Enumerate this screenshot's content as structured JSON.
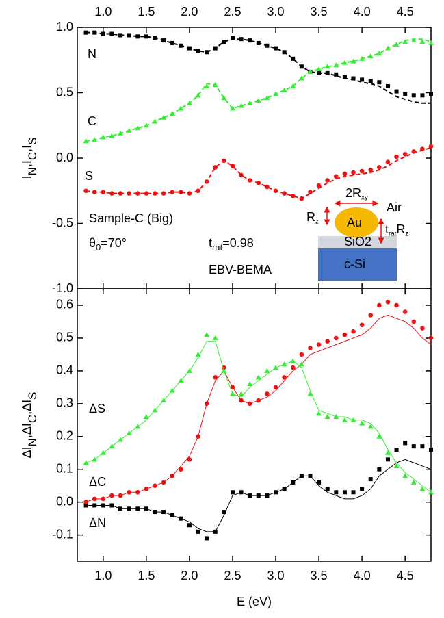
{
  "chart_data": [
    {
      "type": "line",
      "xaxis": "top",
      "ylabel": [
        {
          "text": "I"
        },
        {
          "text": "N",
          "sub": true
        },
        {
          "text": ",I"
        },
        {
          "text": "C",
          "sub": true
        },
        {
          "text": ",I"
        },
        {
          "text": "S",
          "sub": true
        }
      ],
      "x": [
        0.8,
        0.9,
        1.0,
        1.1,
        1.2,
        1.3,
        1.4,
        1.5,
        1.6,
        1.7,
        1.8,
        1.9,
        2.0,
        2.1,
        2.2,
        2.3,
        2.4,
        2.5,
        2.6,
        2.7,
        2.8,
        2.9,
        3.0,
        3.1,
        3.2,
        3.3,
        3.4,
        3.5,
        3.6,
        3.7,
        3.8,
        3.9,
        4.0,
        4.1,
        4.2,
        4.3,
        4.4,
        4.5,
        4.6,
        4.7,
        4.8
      ],
      "xlim": [
        0.7,
        4.8
      ],
      "xticks": [
        {
          "value": 1,
          "label": "1.0"
        },
        {
          "value": 1.5,
          "label": "1.5"
        },
        {
          "value": 2,
          "label": "2.0"
        },
        {
          "value": 2.5,
          "label": "2.5"
        },
        {
          "value": 3,
          "label": "3.0"
        },
        {
          "value": 3.5,
          "label": "3.5"
        },
        {
          "value": 4,
          "label": "4.0"
        },
        {
          "value": 4.5,
          "label": "4.5"
        }
      ],
      "ylim": [
        -1,
        1
      ],
      "yticks": [
        {
          "value": 1,
          "label": "1.0"
        },
        {
          "value": 0.5,
          "label": "0.5"
        },
        {
          "value": 0,
          "label": "0.0"
        },
        {
          "value": -0.5,
          "label": "-0.5"
        },
        {
          "value": -1,
          "label": "-1.0"
        }
      ],
      "series": [
        {
          "name": "N",
          "color": "#000000",
          "marker": "square",
          "values": [
            0.96,
            0.96,
            0.95,
            0.95,
            0.94,
            0.94,
            0.93,
            0.93,
            0.92,
            0.9,
            0.88,
            0.86,
            0.84,
            0.82,
            0.81,
            0.84,
            0.89,
            0.92,
            0.91,
            0.9,
            0.88,
            0.86,
            0.84,
            0.81,
            0.76,
            0.7,
            0.66,
            0.65,
            0.65,
            0.64,
            0.62,
            0.61,
            0.6,
            0.59,
            0.58,
            0.55,
            0.51,
            0.49,
            0.48,
            0.48,
            0.49
          ]
        },
        {
          "color": "#000000",
          "line": "dashed",
          "values": [
            0.96,
            0.96,
            0.95,
            0.95,
            0.94,
            0.94,
            0.93,
            0.93,
            0.92,
            0.9,
            0.88,
            0.86,
            0.84,
            0.82,
            0.81,
            0.84,
            0.89,
            0.91,
            0.91,
            0.9,
            0.88,
            0.86,
            0.84,
            0.81,
            0.76,
            0.7,
            0.66,
            0.65,
            0.65,
            0.63,
            0.61,
            0.6,
            0.58,
            0.57,
            0.55,
            0.51,
            0.47,
            0.45,
            0.43,
            0.42,
            0.42
          ]
        },
        {
          "name": "C",
          "color": "#33ee33",
          "marker": "triangle",
          "values": [
            0.13,
            0.14,
            0.16,
            0.17,
            0.19,
            0.21,
            0.23,
            0.25,
            0.28,
            0.31,
            0.34,
            0.38,
            0.42,
            0.48,
            0.55,
            0.56,
            0.46,
            0.38,
            0.4,
            0.42,
            0.44,
            0.46,
            0.49,
            0.52,
            0.55,
            0.61,
            0.66,
            0.68,
            0.7,
            0.71,
            0.73,
            0.74,
            0.76,
            0.78,
            0.8,
            0.84,
            0.87,
            0.89,
            0.9,
            0.89,
            0.88
          ]
        },
        {
          "color": "#33ee33",
          "line": "dashed",
          "values": [
            0.13,
            0.14,
            0.16,
            0.17,
            0.19,
            0.21,
            0.23,
            0.25,
            0.28,
            0.31,
            0.34,
            0.38,
            0.42,
            0.48,
            0.57,
            0.56,
            0.46,
            0.38,
            0.4,
            0.42,
            0.44,
            0.46,
            0.49,
            0.52,
            0.55,
            0.61,
            0.66,
            0.68,
            0.7,
            0.71,
            0.73,
            0.74,
            0.76,
            0.78,
            0.8,
            0.84,
            0.87,
            0.9,
            0.91,
            0.91,
            0.89
          ]
        },
        {
          "name": "S",
          "color": "#ee1111",
          "marker": "circle",
          "values": [
            -0.25,
            -0.26,
            -0.26,
            -0.27,
            -0.27,
            -0.27,
            -0.27,
            -0.27,
            -0.27,
            -0.27,
            -0.26,
            -0.26,
            -0.27,
            -0.25,
            -0.18,
            -0.07,
            -0.02,
            -0.06,
            -0.13,
            -0.17,
            -0.19,
            -0.22,
            -0.25,
            -0.27,
            -0.29,
            -0.31,
            -0.26,
            -0.21,
            -0.17,
            -0.14,
            -0.12,
            -0.11,
            -0.1,
            -0.09,
            -0.07,
            -0.03,
            0.01,
            0.03,
            0.05,
            0.07,
            0.09
          ]
        },
        {
          "color": "#ee1111",
          "line": "dashed",
          "values": [
            -0.25,
            -0.26,
            -0.26,
            -0.27,
            -0.27,
            -0.27,
            -0.27,
            -0.27,
            -0.27,
            -0.27,
            -0.26,
            -0.26,
            -0.27,
            -0.25,
            -0.18,
            -0.07,
            -0.02,
            -0.06,
            -0.13,
            -0.17,
            -0.19,
            -0.22,
            -0.25,
            -0.27,
            -0.29,
            -0.31,
            -0.27,
            -0.23,
            -0.19,
            -0.16,
            -0.14,
            -0.13,
            -0.12,
            -0.11,
            -0.09,
            -0.06,
            -0.02,
            0.01,
            0.04,
            0.06,
            0.08
          ]
        }
      ],
      "annotations": [
        "Sample-C (Big)",
        [
          {
            "text": "θ"
          },
          {
            "text": "0",
            "sub": true
          },
          {
            "text": "=70°"
          }
        ],
        [
          {
            "text": "t"
          },
          {
            "text": "rat",
            "sub": true
          },
          {
            "text": "=0.98"
          }
        ],
        "EBV-BEMA",
        [
          {
            "text": "2R"
          },
          {
            "text": "xy",
            "sub": true
          }
        ],
        "Air",
        [
          {
            "text": "R"
          },
          {
            "text": "z",
            "sub": true
          }
        ],
        "Au",
        [
          {
            "text": "t"
          },
          {
            "text": "rat",
            "sub": true
          },
          {
            "text": "R"
          },
          {
            "text": "z",
            "sub": true
          }
        ],
        "SiO2",
        "c-Si"
      ]
    },
    {
      "type": "line",
      "xaxis": "bottom",
      "xlabel": "E (eV)",
      "ylabel": [
        {
          "text": "ΔI"
        },
        {
          "text": "N",
          "sub": true
        },
        {
          "text": ",ΔI"
        },
        {
          "text": "C",
          "sub": true
        },
        {
          "text": ",ΔI"
        },
        {
          "text": "S",
          "sub": true
        }
      ],
      "x": [
        0.8,
        0.9,
        1.0,
        1.1,
        1.2,
        1.3,
        1.4,
        1.5,
        1.6,
        1.7,
        1.8,
        1.9,
        2.0,
        2.1,
        2.2,
        2.3,
        2.4,
        2.5,
        2.6,
        2.7,
        2.8,
        2.9,
        3.0,
        3.1,
        3.2,
        3.3,
        3.4,
        3.5,
        3.6,
        3.7,
        3.8,
        3.9,
        4.0,
        4.1,
        4.2,
        4.3,
        4.4,
        4.5,
        4.6,
        4.7,
        4.8
      ],
      "xlim": [
        0.7,
        4.8
      ],
      "xticks": [
        {
          "value": 1,
          "label": "1.0"
        },
        {
          "value": 1.5,
          "label": "1.5"
        },
        {
          "value": 2,
          "label": "2.0"
        },
        {
          "value": 2.5,
          "label": "2.5"
        },
        {
          "value": 3,
          "label": "3.0"
        },
        {
          "value": 3.5,
          "label": "3.5"
        },
        {
          "value": 4,
          "label": "4.0"
        },
        {
          "value": 4.5,
          "label": "4.5"
        }
      ],
      "ylim": [
        -0.18,
        0.65
      ],
      "yticks": [
        {
          "value": 0.6,
          "label": "0.6"
        },
        {
          "value": 0.5,
          "label": "0.5"
        },
        {
          "value": 0.4,
          "label": "0.4"
        },
        {
          "value": 0.3,
          "label": "0.3"
        },
        {
          "value": 0.2,
          "label": "0.2"
        },
        {
          "value": 0.1,
          "label": "0.1"
        },
        {
          "value": 0,
          "label": "0.0"
        },
        {
          "value": -0.1,
          "label": "-0.1"
        }
      ],
      "series": [
        {
          "name": "ΔN",
          "color": "#000000",
          "marker": "square",
          "values": [
            -0.01,
            -0.01,
            -0.01,
            -0.01,
            -0.02,
            -0.02,
            -0.02,
            -0.02,
            -0.03,
            -0.03,
            -0.04,
            -0.05,
            -0.07,
            -0.09,
            -0.11,
            -0.09,
            -0.03,
            0.03,
            0.03,
            0.02,
            0.02,
            0.02,
            0.03,
            0.04,
            0.06,
            0.08,
            0.08,
            0.06,
            0.04,
            0.03,
            0.03,
            0.03,
            0.04,
            0.07,
            0.1,
            0.13,
            0.16,
            0.18,
            0.17,
            0.17,
            0.16
          ]
        },
        {
          "color": "#000000",
          "line": "solid",
          "values": [
            -0.01,
            -0.01,
            -0.01,
            -0.01,
            -0.02,
            -0.02,
            -0.02,
            -0.02,
            -0.03,
            -0.03,
            -0.04,
            -0.05,
            -0.06,
            -0.08,
            -0.09,
            -0.09,
            -0.04,
            0.02,
            0.03,
            0.02,
            0.02,
            0.02,
            0.03,
            0.04,
            0.06,
            0.08,
            0.08,
            0.05,
            0.03,
            0.02,
            0.01,
            0.01,
            0.02,
            0.04,
            0.08,
            0.1,
            0.12,
            0.13,
            0.12,
            0.11,
            0.1
          ]
        },
        {
          "name": "ΔC",
          "color": "#ee1111",
          "marker": "circle",
          "values": [
            0.0,
            0.01,
            0.01,
            0.02,
            0.02,
            0.03,
            0.03,
            0.04,
            0.05,
            0.06,
            0.08,
            0.1,
            0.13,
            0.2,
            0.3,
            0.38,
            0.41,
            0.35,
            0.31,
            0.3,
            0.31,
            0.33,
            0.35,
            0.38,
            0.41,
            0.45,
            0.47,
            0.48,
            0.49,
            0.5,
            0.51,
            0.52,
            0.54,
            0.57,
            0.6,
            0.61,
            0.6,
            0.58,
            0.55,
            0.53,
            0.5
          ]
        },
        {
          "color": "#ee1111",
          "line": "solid",
          "values": [
            0.0,
            0.01,
            0.01,
            0.02,
            0.02,
            0.03,
            0.03,
            0.04,
            0.05,
            0.06,
            0.08,
            0.11,
            0.14,
            0.2,
            0.3,
            0.37,
            0.4,
            0.35,
            0.31,
            0.3,
            0.31,
            0.32,
            0.34,
            0.37,
            0.4,
            0.42,
            0.45,
            0.46,
            0.47,
            0.48,
            0.49,
            0.5,
            0.51,
            0.53,
            0.56,
            0.57,
            0.56,
            0.55,
            0.53,
            0.5,
            0.48
          ]
        },
        {
          "name": "ΔS",
          "color": "#33ee33",
          "marker": "triangle",
          "values": [
            0.12,
            0.13,
            0.15,
            0.17,
            0.19,
            0.21,
            0.23,
            0.26,
            0.28,
            0.31,
            0.34,
            0.37,
            0.4,
            0.45,
            0.51,
            0.5,
            0.4,
            0.33,
            0.33,
            0.36,
            0.38,
            0.4,
            0.41,
            0.42,
            0.43,
            0.42,
            0.33,
            0.27,
            0.26,
            0.26,
            0.25,
            0.25,
            0.24,
            0.23,
            0.2,
            0.15,
            0.11,
            0.08,
            0.06,
            0.04,
            0.03
          ]
        },
        {
          "color": "#33ee33",
          "line": "solid",
          "values": [
            0.12,
            0.13,
            0.15,
            0.17,
            0.19,
            0.21,
            0.23,
            0.25,
            0.28,
            0.31,
            0.34,
            0.37,
            0.4,
            0.44,
            0.49,
            0.49,
            0.4,
            0.33,
            0.32,
            0.35,
            0.37,
            0.39,
            0.41,
            0.42,
            0.43,
            0.41,
            0.34,
            0.28,
            0.27,
            0.26,
            0.26,
            0.25,
            0.25,
            0.24,
            0.21,
            0.16,
            0.12,
            0.09,
            0.07,
            0.05,
            0.03
          ]
        }
      ]
    }
  ]
}
